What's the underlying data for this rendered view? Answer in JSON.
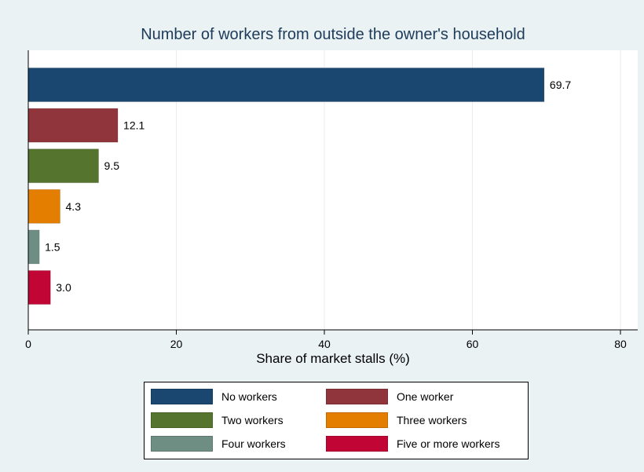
{
  "chart_data": {
    "type": "bar",
    "orientation": "horizontal",
    "title": "Number of workers from outside the owner's household",
    "xlabel": "Share of market stalls (%)",
    "ylabel": "",
    "xlim": [
      0,
      80
    ],
    "xticks": [
      "0",
      "20",
      "40",
      "60",
      "80"
    ],
    "grid": true,
    "legend_position": "bottom",
    "categories": [
      "No workers",
      "One worker",
      "Two workers",
      "Three workers",
      "Four workers",
      "Five or more workers"
    ],
    "values": [
      69.7,
      12.1,
      9.5,
      4.3,
      1.5,
      3.0
    ],
    "value_labels": [
      "69.7",
      "12.1",
      "9.5",
      "4.3",
      "1.5",
      "3.0"
    ],
    "colors": [
      "#1a476f",
      "#90353b",
      "#55752f",
      "#e37e00",
      "#6e8e84",
      "#c10534"
    ]
  },
  "legend": {
    "items": [
      {
        "label": "No workers",
        "color": "#1a476f"
      },
      {
        "label": "One worker",
        "color": "#90353b"
      },
      {
        "label": "Two workers",
        "color": "#55752f"
      },
      {
        "label": "Three workers",
        "color": "#e37e00"
      },
      {
        "label": "Four workers",
        "color": "#6e8e84"
      },
      {
        "label": "Five or more workers",
        "color": "#c10534"
      }
    ]
  },
  "colors": {
    "background": "#eaf2f3",
    "plot_background": "#ffffff",
    "grid": "#eaf2f3",
    "title": "#1e3b5a"
  }
}
